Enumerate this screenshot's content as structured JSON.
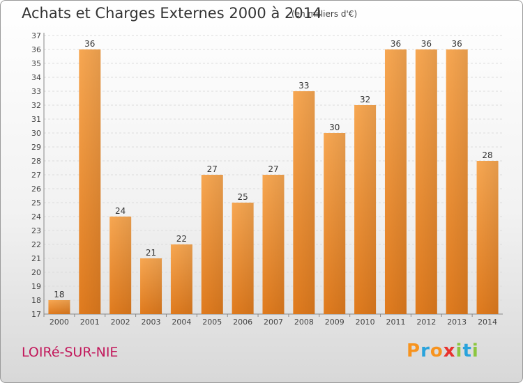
{
  "title": "Achats et Charges Externes 2000 à 2014",
  "subtitle": "(en milliers d'€)",
  "commune": "LOIRé-SUR-NIE",
  "logo": {
    "text": "Proxiti",
    "letters": [
      {
        "ch": "P",
        "color": "#f7931e"
      },
      {
        "ch": "r",
        "color": "#29a3dc"
      },
      {
        "ch": "o",
        "color": "#f7931e"
      },
      {
        "ch": "x",
        "color": "#e8322e"
      },
      {
        "ch": "i",
        "color": "#8cc63f"
      },
      {
        "ch": "t",
        "color": "#29a3dc"
      },
      {
        "ch": "i",
        "color": "#8cc63f"
      }
    ]
  },
  "chart_data": {
    "type": "bar",
    "title": "Achats et Charges Externes 2000 à 2014",
    "subtitle": "(en milliers d'€)",
    "categories": [
      "2000",
      "2001",
      "2002",
      "2003",
      "2004",
      "2005",
      "2006",
      "2007",
      "2008",
      "2009",
      "2010",
      "2011",
      "2012",
      "2013",
      "2014"
    ],
    "values": [
      18,
      36,
      24,
      21,
      22,
      27,
      25,
      27,
      33,
      30,
      32,
      36,
      36,
      36,
      28
    ],
    "ylim": [
      17,
      37
    ],
    "yticks": [
      17,
      18,
      19,
      20,
      21,
      22,
      23,
      24,
      25,
      26,
      27,
      28,
      29,
      30,
      31,
      32,
      33,
      34,
      35,
      36,
      37
    ],
    "grid": true,
    "bar_color": "#f5a04a",
    "bar_color_dark": "#e07b1e"
  }
}
